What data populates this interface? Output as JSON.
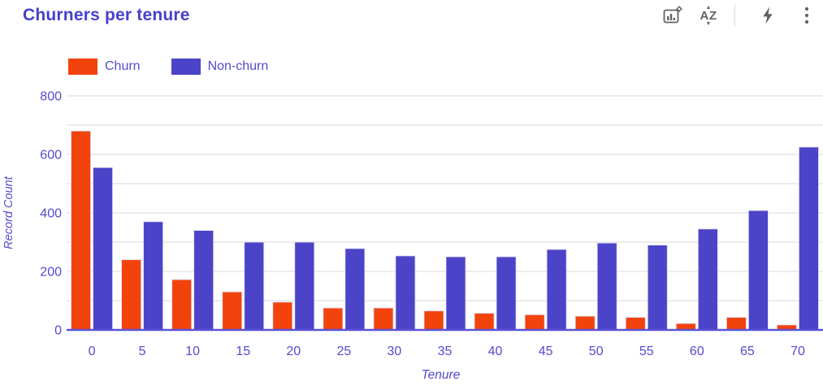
{
  "header": {
    "title": "Churners per tenure",
    "toolbar": {
      "chart_settings_tooltip": "Chart settings",
      "sort_label": "AZ",
      "sort_arrow_up": "▲",
      "sort_arrow_down": "▼"
    }
  },
  "legend": {
    "items": [
      {
        "label": "Churn",
        "color": "#F3430C"
      },
      {
        "label": "Non-churn",
        "color": "#4B44C8"
      }
    ]
  },
  "chart_data": {
    "type": "bar",
    "title": "Churners per tenure",
    "xlabel": "Tenure",
    "ylabel": "Record Count",
    "categories": [
      "0",
      "5",
      "10",
      "15",
      "20",
      "25",
      "30",
      "35",
      "40",
      "45",
      "50",
      "55",
      "60",
      "65",
      "70"
    ],
    "series": [
      {
        "name": "Churn",
        "color": "#F3430C",
        "values": [
          680,
          240,
          172,
          130,
          95,
          75,
          75,
          65,
          57,
          52,
          47,
          43,
          22,
          43,
          17
        ]
      },
      {
        "name": "Non-churn",
        "color": "#4B44C8",
        "values": [
          555,
          370,
          340,
          300,
          300,
          278,
          253,
          250,
          250,
          275,
          297,
          290,
          345,
          408,
          625
        ]
      }
    ],
    "ylim": [
      0,
      800
    ],
    "yticks_labeled": [
      0,
      200,
      400,
      600,
      800
    ],
    "grid_step": 100,
    "grid": true,
    "legend_position": "top-left"
  },
  "colors": {
    "title_text": "#4640CB",
    "axis_text": "#534BCE",
    "gridline": "#E6E5EA",
    "baseline": "#5A52D5",
    "icon_gray": "#5F6368",
    "bar_stroke": "#DCDAF0",
    "background": "#FFFFFF"
  }
}
